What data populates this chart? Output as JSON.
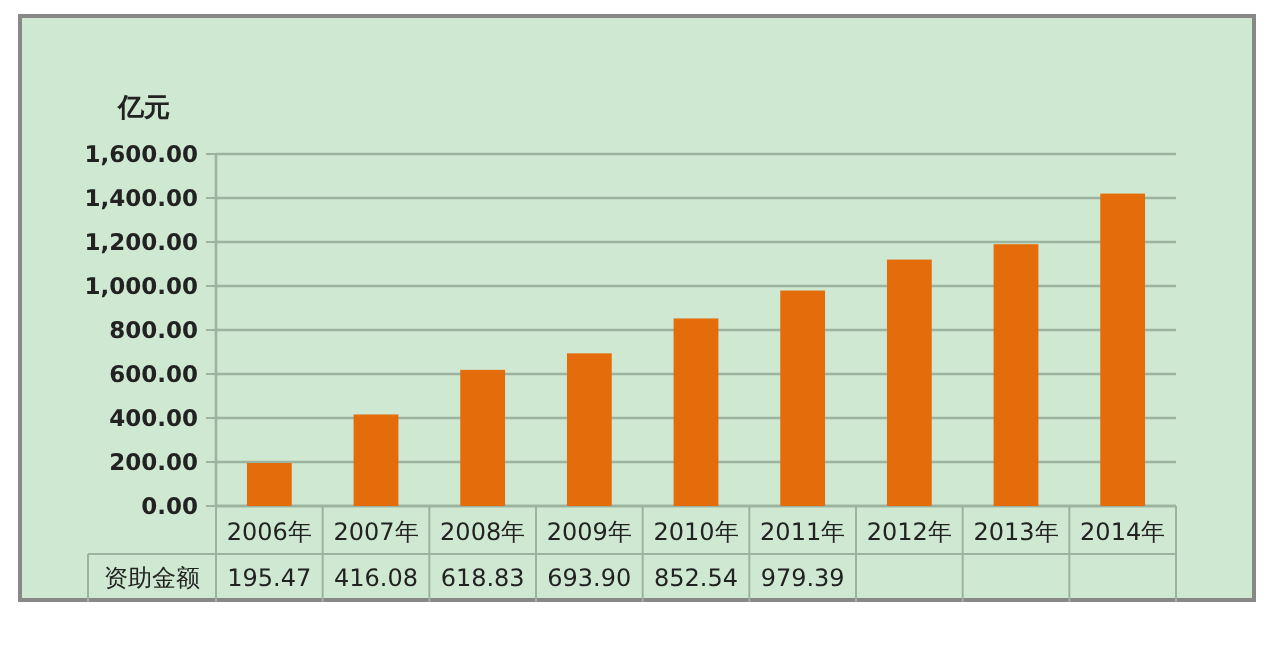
{
  "chart_data": {
    "type": "bar",
    "ylabel": "亿元",
    "categories": [
      "2006年",
      "2007年",
      "2008年",
      "2009年",
      "2010年",
      "2011年",
      "2012年",
      "2013年",
      "2014年"
    ],
    "series": [
      {
        "name": "资助金额",
        "color": "#e46c0a",
        "values": [
          195.47,
          416.08,
          618.83,
          693.9,
          852.54,
          979.39,
          1120,
          1190,
          1420
        ],
        "value_labels": [
          "195.47",
          "416.08",
          "618.83",
          "693.90",
          "852.54",
          "979.39",
          null,
          null,
          null
        ]
      }
    ],
    "ylim": [
      0,
      1600
    ],
    "yticks": [
      {
        "value": 0,
        "label": "0.00"
      },
      {
        "value": 200,
        "label": "200.00"
      },
      {
        "value": 400,
        "label": "400.00"
      },
      {
        "value": 600,
        "label": "600.00"
      },
      {
        "value": 800,
        "label": "800.00"
      },
      {
        "value": 1000,
        "label": "1,000.00"
      },
      {
        "value": 1200,
        "label": "1,200.00"
      },
      {
        "value": 1400,
        "label": "1,400.00"
      },
      {
        "value": 1600,
        "label": "1,600.00"
      }
    ],
    "grid": "y",
    "legend": false
  }
}
